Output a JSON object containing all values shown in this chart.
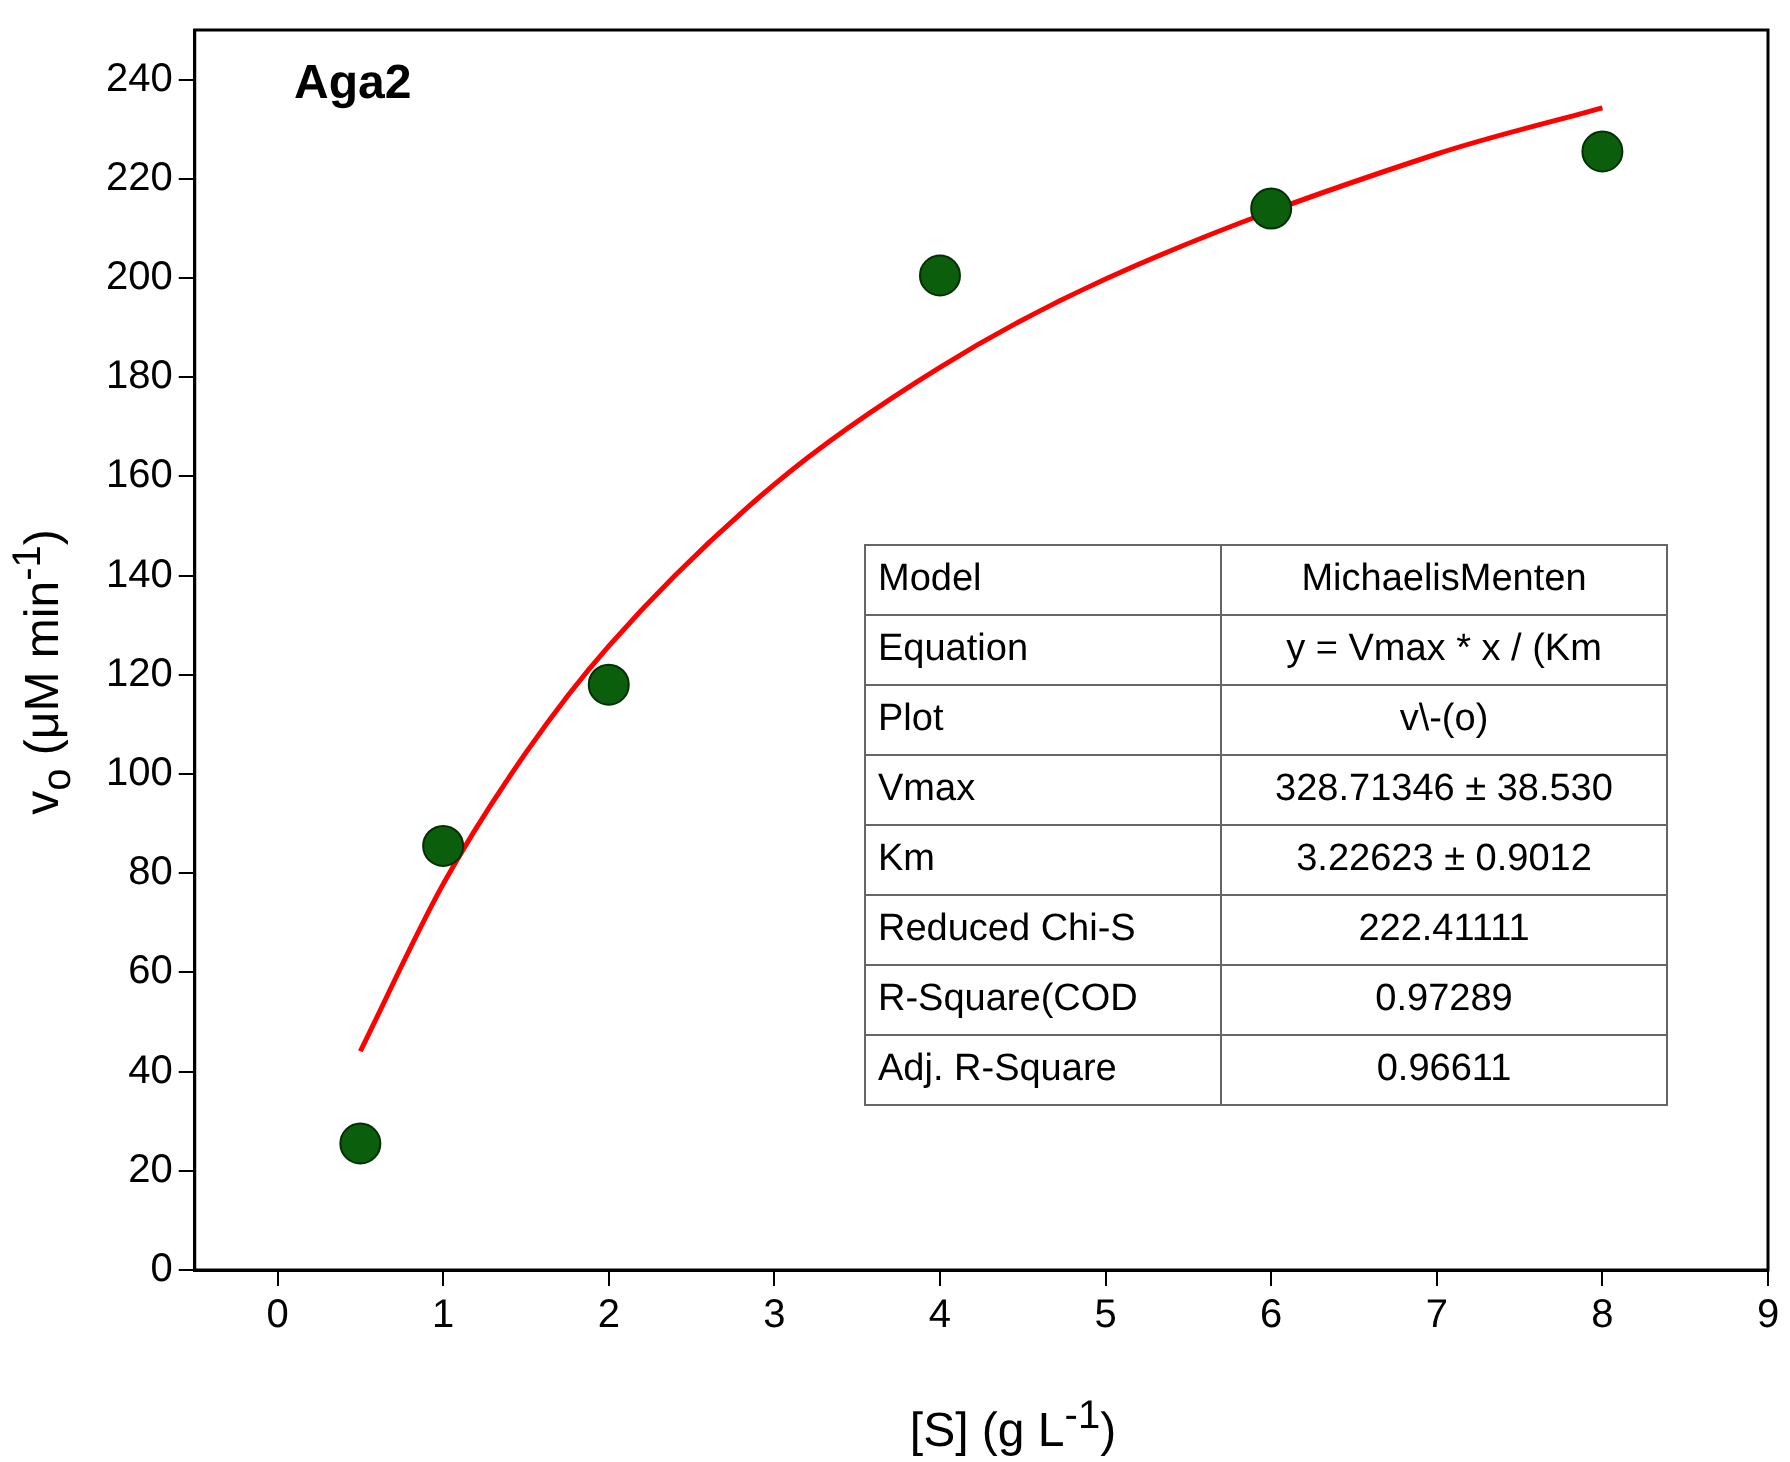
{
  "chart_data": {
    "type": "scatter",
    "title": "Aga2",
    "xlabel": "[S] (g L$^{-1}$)",
    "ylabel": "v$_{o}$ (μM min$^{-1}$)",
    "xlim": [
      -0.5,
      9
    ],
    "xticks": [
      0,
      1,
      2,
      3,
      4,
      5,
      6,
      7,
      8,
      9
    ],
    "ylim": [
      0,
      250
    ],
    "yticks": [
      0,
      20,
      40,
      60,
      80,
      100,
      120,
      140,
      160,
      180,
      200,
      220,
      240
    ],
    "grid": false,
    "legend": false,
    "series": [
      {
        "marker": "circle",
        "color": "#0b5e0b",
        "x": [
          0.5,
          1,
          2,
          4,
          6,
          8
        ],
        "values": [
          25.5,
          85.5,
          118,
          200.5,
          214,
          225.5
        ]
      },
      {
        "type": "line",
        "marker": "none",
        "line_style": "solid",
        "color": "#ff0000",
        "x": [
          0.5,
          1,
          1.5,
          2,
          3,
          4,
          5,
          7,
          8
        ],
        "values": [
          44.1,
          77.8,
          104.3,
          125.8,
          158.4,
          182,
          199.8,
          225,
          234.3
        ]
      }
    ],
    "annotations": [
      "Model",
      "MichaelisMenten",
      "Equation",
      "y = Vmax * x / (Km",
      "Plot",
      "v\\-(o)",
      "Vmax",
      "328.71346 ± 38.530",
      "Km",
      "3.22623 ± 0.9012",
      "Reduced Chi-S",
      "222.41111",
      "R-Square(COD",
      "0.97289",
      "Adj. R-Square",
      "0.96611"
    ]
  }
}
